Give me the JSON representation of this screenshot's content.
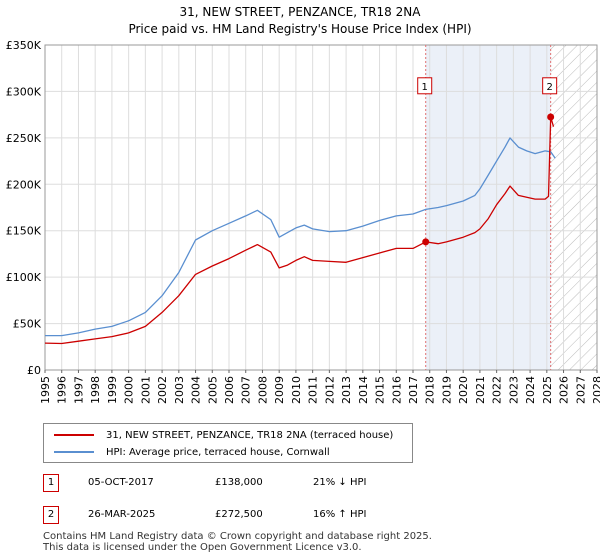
{
  "title": {
    "line1": "31, NEW STREET, PENZANCE, TR18 2NA",
    "line2": "Price paid vs. HM Land Registry's House Price Index (HPI)"
  },
  "colors": {
    "property": "#cc0000",
    "hpi": "#5a8fd0",
    "grid": "#dddddd",
    "highlight": "#ebf0f8"
  },
  "chart_data": {
    "type": "line",
    "title": "Price paid vs. HM Land Registry's House Price Index (HPI)",
    "xlabel": "",
    "ylabel": "",
    "xlim": [
      1995,
      2028
    ],
    "ylim": [
      0,
      350000
    ],
    "x_ticks": [
      "1995",
      "1996",
      "1997",
      "1998",
      "1999",
      "2000",
      "2001",
      "2002",
      "2003",
      "2004",
      "2005",
      "2006",
      "2007",
      "2008",
      "2009",
      "2010",
      "2011",
      "2012",
      "2013",
      "2014",
      "2015",
      "2016",
      "2017",
      "2018",
      "2019",
      "2020",
      "2021",
      "2022",
      "2023",
      "2024",
      "2025",
      "2026",
      "2027",
      "2028"
    ],
    "y_ticks": [
      {
        "value": 0,
        "label": "£0"
      },
      {
        "value": 50000,
        "label": "£50K"
      },
      {
        "value": 100000,
        "label": "£100K"
      },
      {
        "value": 150000,
        "label": "£150K"
      },
      {
        "value": 200000,
        "label": "£200K"
      },
      {
        "value": 250000,
        "label": "£250K"
      },
      {
        "value": 300000,
        "label": "£300K"
      },
      {
        "value": 350000,
        "label": "£350K"
      }
    ],
    "highlight_range": [
      2017.76,
      2025.23
    ],
    "forecast_from": 2025.23,
    "series": [
      {
        "name": "31, NEW STREET, PENZANCE, TR18 2NA (terraced house)",
        "color": "#cc0000",
        "points": [
          [
            1995.0,
            29000
          ],
          [
            1996.0,
            28500
          ],
          [
            1997.0,
            31000
          ],
          [
            1998.0,
            33500
          ],
          [
            1999.0,
            36000
          ],
          [
            2000.0,
            40000
          ],
          [
            2001.0,
            47000
          ],
          [
            2002.0,
            62000
          ],
          [
            2003.0,
            80000
          ],
          [
            2004.0,
            103000
          ],
          [
            2005.0,
            112000
          ],
          [
            2006.0,
            120000
          ],
          [
            2007.0,
            129000
          ],
          [
            2007.7,
            135000
          ],
          [
            2008.5,
            127000
          ],
          [
            2009.0,
            110000
          ],
          [
            2009.5,
            113000
          ],
          [
            2010.0,
            118000
          ],
          [
            2010.5,
            122000
          ],
          [
            2011.0,
            118000
          ],
          [
            2012.0,
            117000
          ],
          [
            2013.0,
            116000
          ],
          [
            2014.0,
            121000
          ],
          [
            2015.0,
            126000
          ],
          [
            2016.0,
            131000
          ],
          [
            2017.0,
            131000
          ],
          [
            2017.76,
            138000
          ],
          [
            2018.5,
            136000
          ],
          [
            2019.0,
            138000
          ],
          [
            2020.0,
            143000
          ],
          [
            2020.7,
            148000
          ],
          [
            2021.0,
            152000
          ],
          [
            2021.5,
            163000
          ],
          [
            2022.0,
            178000
          ],
          [
            2022.5,
            190000
          ],
          [
            2022.8,
            198000
          ],
          [
            2023.3,
            188000
          ],
          [
            2023.8,
            186000
          ],
          [
            2024.3,
            184000
          ],
          [
            2024.9,
            184000
          ],
          [
            2025.1,
            187000
          ],
          [
            2025.23,
            272500
          ],
          [
            2025.4,
            262000
          ]
        ]
      },
      {
        "name": "HPI: Average price, terraced house, Cornwall",
        "color": "#5a8fd0",
        "points": [
          [
            1995.0,
            37000
          ],
          [
            1996.0,
            37000
          ],
          [
            1997.0,
            40000
          ],
          [
            1998.0,
            44000
          ],
          [
            1999.0,
            47000
          ],
          [
            2000.0,
            53000
          ],
          [
            2001.0,
            62000
          ],
          [
            2002.0,
            80000
          ],
          [
            2003.0,
            105000
          ],
          [
            2004.0,
            140000
          ],
          [
            2005.0,
            150000
          ],
          [
            2006.0,
            158000
          ],
          [
            2007.0,
            166000
          ],
          [
            2007.7,
            172000
          ],
          [
            2008.5,
            162000
          ],
          [
            2009.0,
            143000
          ],
          [
            2009.5,
            148000
          ],
          [
            2010.0,
            153000
          ],
          [
            2010.5,
            156000
          ],
          [
            2011.0,
            152000
          ],
          [
            2012.0,
            149000
          ],
          [
            2013.0,
            150000
          ],
          [
            2014.0,
            155000
          ],
          [
            2015.0,
            161000
          ],
          [
            2016.0,
            166000
          ],
          [
            2017.0,
            168000
          ],
          [
            2017.76,
            173000
          ],
          [
            2018.5,
            175000
          ],
          [
            2019.0,
            177000
          ],
          [
            2020.0,
            182000
          ],
          [
            2020.7,
            188000
          ],
          [
            2021.0,
            195000
          ],
          [
            2021.5,
            210000
          ],
          [
            2022.0,
            225000
          ],
          [
            2022.5,
            240000
          ],
          [
            2022.8,
            250000
          ],
          [
            2023.3,
            240000
          ],
          [
            2023.8,
            236000
          ],
          [
            2024.3,
            233000
          ],
          [
            2024.9,
            236000
          ],
          [
            2025.23,
            235000
          ],
          [
            2025.5,
            228000
          ]
        ]
      }
    ],
    "markers": [
      {
        "label": "1",
        "x": 2017.76,
        "value": 138000
      },
      {
        "label": "2",
        "x": 2025.23,
        "value": 272500
      }
    ]
  },
  "legend": {
    "property": "31, NEW STREET, PENZANCE, TR18 2NA (terraced house)",
    "hpi": "HPI: Average price, terraced house, Cornwall"
  },
  "sales": [
    {
      "num": "1",
      "date": "05-OCT-2017",
      "price": "£138,000",
      "hpi": "21% ↓ HPI"
    },
    {
      "num": "2",
      "date": "26-MAR-2025",
      "price": "£272,500",
      "hpi": "16% ↑ HPI"
    }
  ],
  "footer": {
    "line1": "Contains HM Land Registry data © Crown copyright and database right 2025.",
    "line2": "This data is licensed under the Open Government Licence v3.0."
  }
}
